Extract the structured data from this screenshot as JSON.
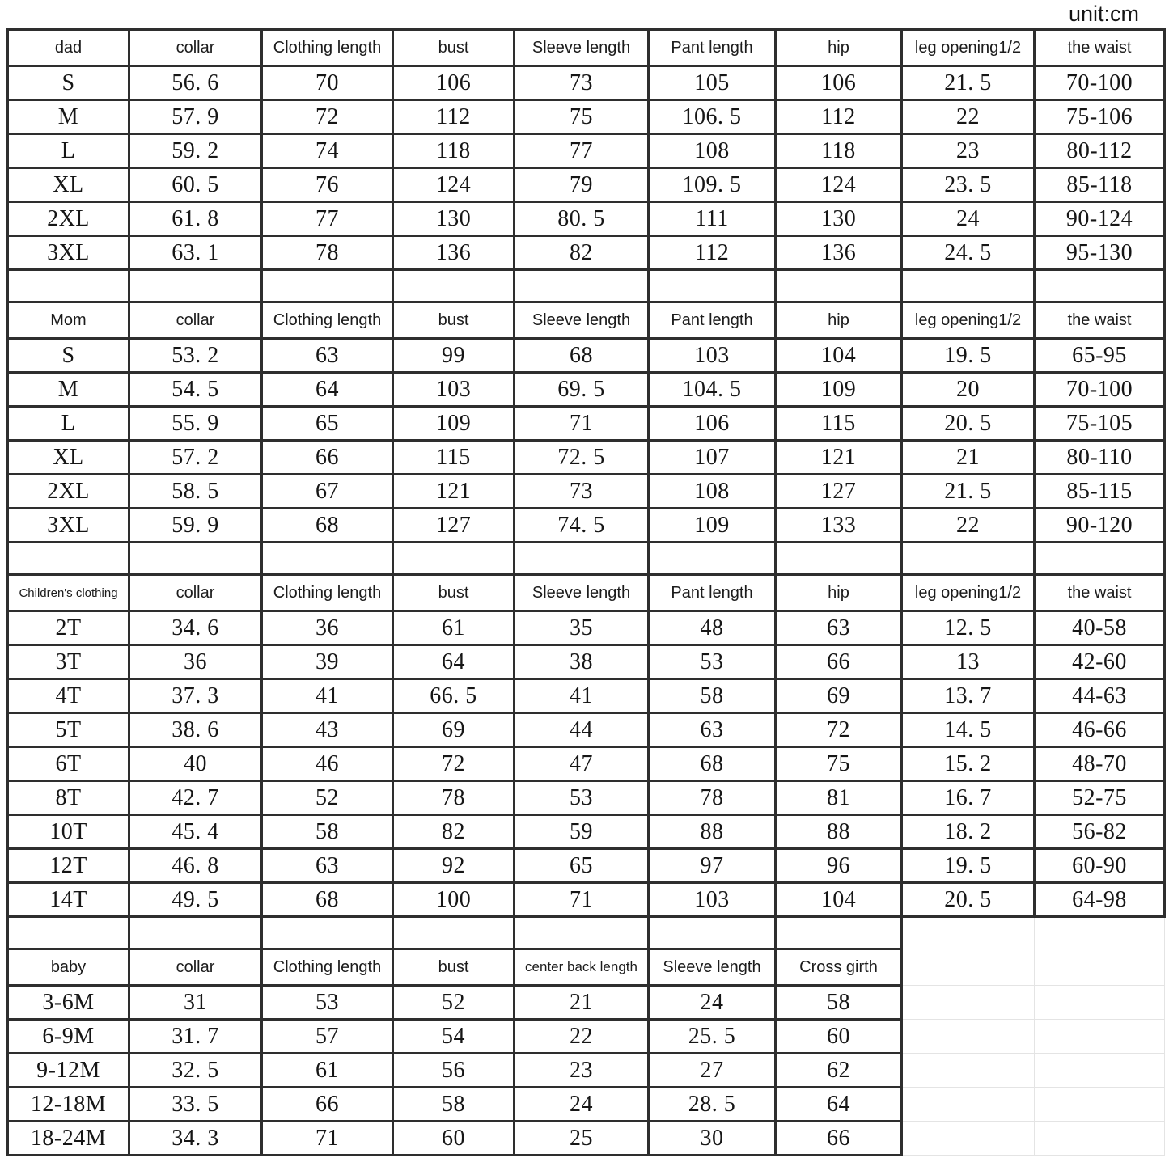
{
  "unit_label": "unit:cm",
  "colors": {
    "background": "#ffffff",
    "grid_line": "#2e2e2e",
    "faint_grid_line": "#e4e4e4",
    "text": "#1c1c1c"
  },
  "chart_data": [
    {
      "type": "table",
      "name": "dad",
      "columns": [
        "dad",
        "collar",
        "Clothing length",
        "bust",
        "Sleeve length",
        "Pant length",
        "hip",
        "leg opening1/2",
        "the waist"
      ],
      "rows": [
        [
          "S",
          "56. 6",
          "70",
          "106",
          "73",
          "105",
          "106",
          "21. 5",
          "70-100"
        ],
        [
          "M",
          "57. 9",
          "72",
          "112",
          "75",
          "106. 5",
          "112",
          "22",
          "75-106"
        ],
        [
          "L",
          "59. 2",
          "74",
          "118",
          "77",
          "108",
          "118",
          "23",
          "80-112"
        ],
        [
          "XL",
          "60. 5",
          "76",
          "124",
          "79",
          "109. 5",
          "124",
          "23. 5",
          "85-118"
        ],
        [
          "2XL",
          "61. 8",
          "77",
          "130",
          "80. 5",
          "111",
          "130",
          "24",
          "90-124"
        ],
        [
          "3XL",
          "63. 1",
          "78",
          "136",
          "82",
          "112",
          "136",
          "24. 5",
          "95-130"
        ]
      ]
    },
    {
      "type": "table",
      "name": "Mom",
      "columns": [
        "Mom",
        "collar",
        "Clothing length",
        "bust",
        "Sleeve length",
        "Pant length",
        "hip",
        "leg opening1/2",
        "the waist"
      ],
      "rows": [
        [
          "S",
          "53. 2",
          "63",
          "99",
          "68",
          "103",
          "104",
          "19. 5",
          "65-95"
        ],
        [
          "M",
          "54. 5",
          "64",
          "103",
          "69. 5",
          "104. 5",
          "109",
          "20",
          "70-100"
        ],
        [
          "L",
          "55. 9",
          "65",
          "109",
          "71",
          "106",
          "115",
          "20. 5",
          "75-105"
        ],
        [
          "XL",
          "57. 2",
          "66",
          "115",
          "72. 5",
          "107",
          "121",
          "21",
          "80-110"
        ],
        [
          "2XL",
          "58. 5",
          "67",
          "121",
          "73",
          "108",
          "127",
          "21. 5",
          "85-115"
        ],
        [
          "3XL",
          "59. 9",
          "68",
          "127",
          "74. 5",
          "109",
          "133",
          "22",
          "90-120"
        ]
      ]
    },
    {
      "type": "table",
      "name": "Children's clothing",
      "columns": [
        "Children's clothing",
        "collar",
        "Clothing length",
        "bust",
        "Sleeve length",
        "Pant length",
        "hip",
        "leg opening1/2",
        "the waist"
      ],
      "rows": [
        [
          "2T",
          "34. 6",
          "36",
          "61",
          "35",
          "48",
          "63",
          "12. 5",
          "40-58"
        ],
        [
          "3T",
          "36",
          "39",
          "64",
          "38",
          "53",
          "66",
          "13",
          "42-60"
        ],
        [
          "4T",
          "37. 3",
          "41",
          "66. 5",
          "41",
          "58",
          "69",
          "13. 7",
          "44-63"
        ],
        [
          "5T",
          "38. 6",
          "43",
          "69",
          "44",
          "63",
          "72",
          "14. 5",
          "46-66"
        ],
        [
          "6T",
          "40",
          "46",
          "72",
          "47",
          "68",
          "75",
          "15. 2",
          "48-70"
        ],
        [
          "8T",
          "42. 7",
          "52",
          "78",
          "53",
          "78",
          "81",
          "16. 7",
          "52-75"
        ],
        [
          "10T",
          "45. 4",
          "58",
          "82",
          "59",
          "88",
          "88",
          "18. 2",
          "56-82"
        ],
        [
          "12T",
          "46. 8",
          "63",
          "92",
          "65",
          "97",
          "96",
          "19. 5",
          "60-90"
        ],
        [
          "14T",
          "49. 5",
          "68",
          "100",
          "71",
          "103",
          "104",
          "20. 5",
          "64-98"
        ]
      ]
    },
    {
      "type": "table",
      "name": "baby",
      "columns": [
        "baby",
        "collar",
        "Clothing length",
        "bust",
        "center back length",
        "Sleeve length",
        "Cross girth"
      ],
      "rows": [
        [
          "3-6M",
          "31",
          "53",
          "52",
          "21",
          "24",
          "58"
        ],
        [
          "6-9M",
          "31. 7",
          "57",
          "54",
          "22",
          "25. 5",
          "60"
        ],
        [
          "9-12M",
          "32. 5",
          "61",
          "56",
          "23",
          "27",
          "62"
        ],
        [
          "12-18M",
          "33. 5",
          "66",
          "58",
          "24",
          "28. 5",
          "64"
        ],
        [
          "18-24M",
          "34. 3",
          "71",
          "60",
          "25",
          "30",
          "66"
        ]
      ]
    }
  ]
}
